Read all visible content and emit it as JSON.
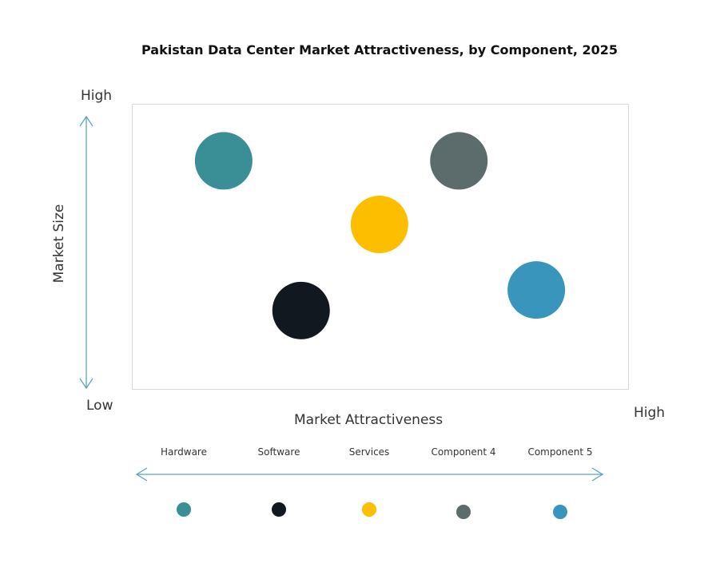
{
  "chart_data": {
    "type": "scatter",
    "title": "Pakistan Data Center Market Attractiveness,  by Component, 2025",
    "xlabel": "Market Attractiveness",
    "ylabel": "Market Size",
    "x_low_label": "Low",
    "x_high_label": "High",
    "y_high_label": "High",
    "xlim": [
      0,
      10
    ],
    "ylim": [
      0,
      10
    ],
    "grid": false,
    "legend_position": "bottom",
    "series": [
      {
        "name": "Hardware",
        "x": 1.85,
        "y": 8.0,
        "color": "#3A8E96"
      },
      {
        "name": "Software",
        "x": 3.41,
        "y": 2.75,
        "color": "#121820"
      },
      {
        "name": "Services",
        "x": 4.99,
        "y": 5.77,
        "color": "#FDBE00"
      },
      {
        "name": "Component 4",
        "x": 6.59,
        "y": 8.0,
        "color": "#5C6B6B"
      },
      {
        "name": "Component 5",
        "x": 8.15,
        "y": 3.47,
        "color": "#3A95BD"
      }
    ],
    "arrow_color": "#5BA3C0"
  }
}
